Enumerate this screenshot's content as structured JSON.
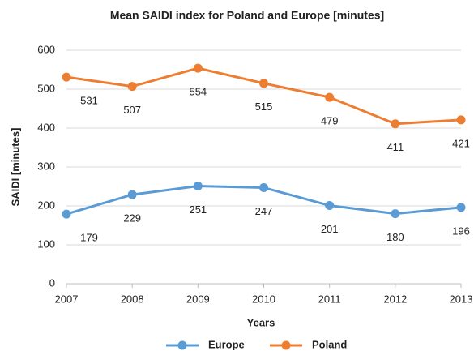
{
  "chart_data": {
    "type": "line",
    "title": "Mean SAIDI index for Poland and Europe [minutes]",
    "x_label": "Years",
    "y_label": "SAIDI [minutes]",
    "x": [
      2007,
      2008,
      2009,
      2010,
      2011,
      2012,
      2013
    ],
    "xlim": [
      2007,
      2013
    ],
    "xticks": [
      2007,
      2008,
      2009,
      2010,
      2011,
      2012,
      2013
    ],
    "ylim": [
      0,
      600
    ],
    "yticks": [
      0,
      100,
      200,
      300,
      400,
      500,
      600
    ],
    "grid": true,
    "legend": "bottom",
    "series": [
      {
        "name": "Europe",
        "color": "#5b9bd5",
        "values": [
          179,
          229,
          251,
          247,
          201,
          180,
          196
        ]
      },
      {
        "name": "Poland",
        "color": "#ed7d31",
        "values": [
          531,
          507,
          554,
          515,
          479,
          411,
          421
        ]
      }
    ]
  }
}
